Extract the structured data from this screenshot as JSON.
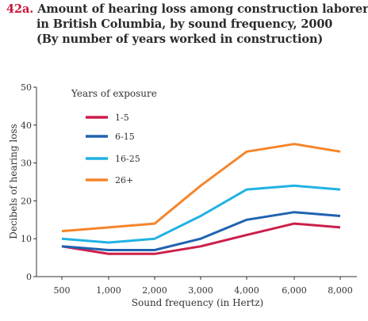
{
  "figure": {
    "number": "42a.",
    "title_lines": [
      "Amount of hearing loss among construction laborers",
      "in British Columbia, by sound frequency, 2000",
      "(By number of years worked in construction)"
    ]
  },
  "chart_data": {
    "type": "line",
    "title": "Amount of hearing loss among construction laborers in British Columbia, by sound frequency, 2000 (By number of years worked in construction)",
    "xlabel": "Sound frequency  (in Hertz)",
    "ylabel": "Decibels of hearing loss",
    "categories": [
      "500",
      "1,000",
      "2,000",
      "3,000",
      "4,000",
      "6,000",
      "8,000"
    ],
    "ylim": [
      0,
      50
    ],
    "yticks": [
      "0",
      "10",
      "20",
      "30",
      "40",
      "50"
    ],
    "legend_title": "Years of exposure",
    "legend_position": "top-left",
    "grid": false,
    "series": [
      {
        "name": "1-5",
        "color": "#cc1f4a",
        "values": [
          8,
          6,
          6,
          8,
          11,
          14,
          13
        ]
      },
      {
        "name": "6-15",
        "color": "#1f63b0",
        "values": [
          8,
          7,
          7,
          10,
          15,
          17,
          16
        ]
      },
      {
        "name": "16-25",
        "color": "#21b2e3",
        "values": [
          10,
          9,
          10,
          16,
          23,
          24,
          23
        ]
      },
      {
        "name": "26+",
        "color": "#f5852b",
        "values": [
          12,
          13,
          14,
          24,
          33,
          35,
          33
        ]
      }
    ]
  }
}
